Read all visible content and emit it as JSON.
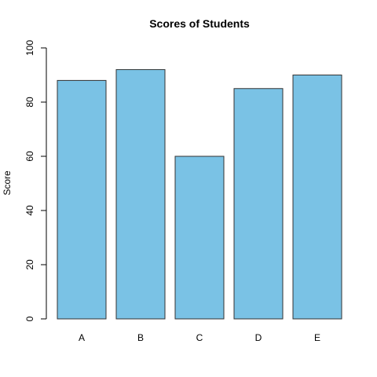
{
  "chart_data": {
    "type": "bar",
    "title": "Scores of Students",
    "xlabel": "",
    "ylabel": "Score",
    "categories": [
      "A",
      "B",
      "C",
      "D",
      "E"
    ],
    "values": [
      88,
      92,
      60,
      85,
      90
    ],
    "ylim": [
      0,
      100
    ],
    "y_ticks": [
      0,
      20,
      40,
      60,
      80,
      100
    ],
    "grid": false,
    "legend": "none",
    "bar_color": "#7ac2e5",
    "bar_border_color": "#333333"
  }
}
